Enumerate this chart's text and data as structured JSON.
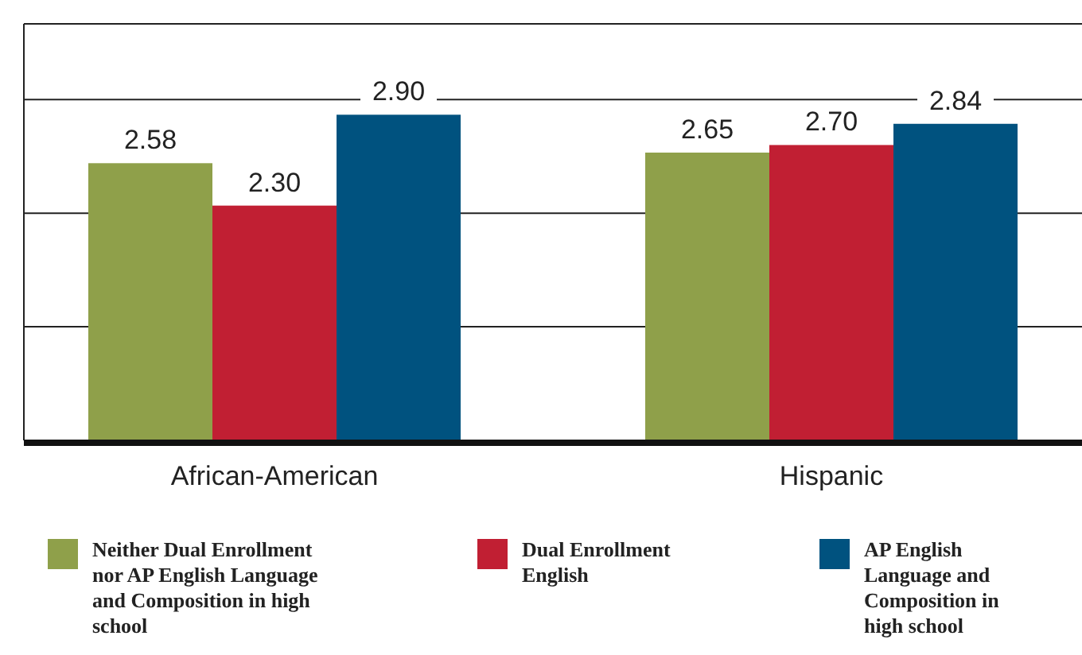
{
  "chart_data": {
    "type": "bar",
    "categories": [
      "African-American",
      "Hispanic"
    ],
    "series": [
      {
        "name": "Neither Dual Enrollment nor AP English Language and Composition in high school",
        "color": "#8fa04a",
        "values": [
          2.58,
          2.65
        ],
        "value_labels": [
          "2.58",
          "2.65"
        ]
      },
      {
        "name": "Dual Enrollment English",
        "color": "#c11f33",
        "values": [
          2.3,
          2.7
        ],
        "value_labels": [
          "2.30",
          "2.70"
        ]
      },
      {
        "name": "AP English Language and Composition in high school",
        "color": "#00527f",
        "values": [
          2.9,
          2.84
        ],
        "value_labels": [
          "2.90",
          "2.84"
        ]
      }
    ],
    "ylim": [
      0.75,
      3.5
    ],
    "yticks": [
      {
        "value": 1.5,
        "label": null
      },
      {
        "value": 2.25,
        "label": null
      },
      {
        "value": 3.0,
        "label": null
      }
    ],
    "grid": "y",
    "legend": "bottom",
    "tick_labels": "x"
  }
}
